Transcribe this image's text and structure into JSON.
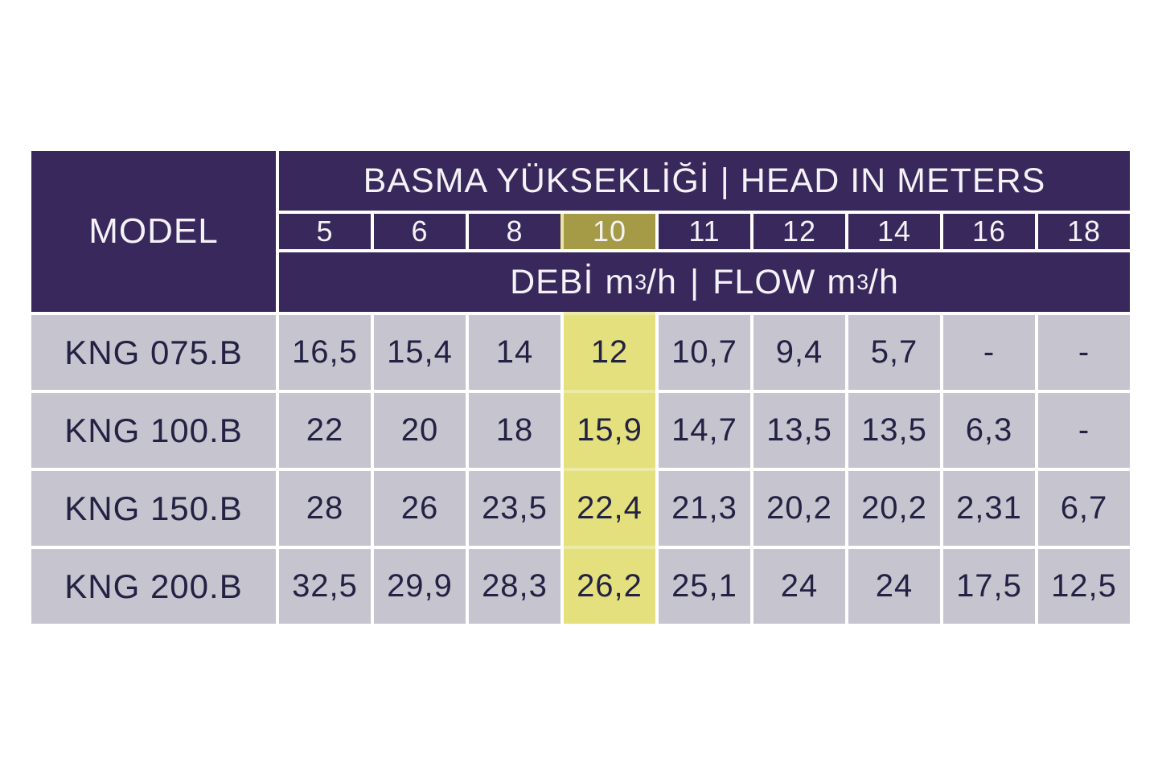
{
  "table": {
    "model_header": "MODEL",
    "head_header": "BASMA YÜKSEKLİĞİ | HEAD IN METERS",
    "flow_header": {
      "left_label": "DEBİ",
      "right_label": "FLOW",
      "unit_base": "m",
      "unit_sup": "3",
      "unit_suffix": "/h",
      "separator": "|"
    },
    "head_columns": [
      "5",
      "6",
      "8",
      "10",
      "11",
      "12",
      "14",
      "16",
      "18"
    ],
    "highlight_column_index": 3,
    "highlight_column_value": "10",
    "rows": [
      {
        "model": "KNG 075.B",
        "values": [
          "16,5",
          "15,4",
          "14",
          "12",
          "10,7",
          "9,4",
          "5,7",
          "-",
          "-"
        ]
      },
      {
        "model": "KNG 100.B",
        "values": [
          "22",
          "20",
          "18",
          "15,9",
          "14,7",
          "13,5",
          "13,5",
          "6,3",
          "-"
        ]
      },
      {
        "model": "KNG 150.B",
        "values": [
          "28",
          "26",
          "23,5",
          "22,4",
          "21,3",
          "20,2",
          "20,2",
          "2,31",
          "6,7"
        ]
      },
      {
        "model": "KNG 200.B",
        "values": [
          "32,5",
          "29,9",
          "28,3",
          "26,2",
          "25,1",
          "24",
          "24",
          "17,5",
          "12,5"
        ]
      }
    ],
    "colors": {
      "header_bg": "#38285c",
      "highlight_header_bg": "#a59b46",
      "highlight_cell_bg": "#e4e07d",
      "highlight_border": "#edeaa4",
      "cell_bg": "#c6c4ce",
      "text_dark": "#232144",
      "text_light": "#f4f2f7",
      "grid_lines": "#ffffff"
    }
  }
}
